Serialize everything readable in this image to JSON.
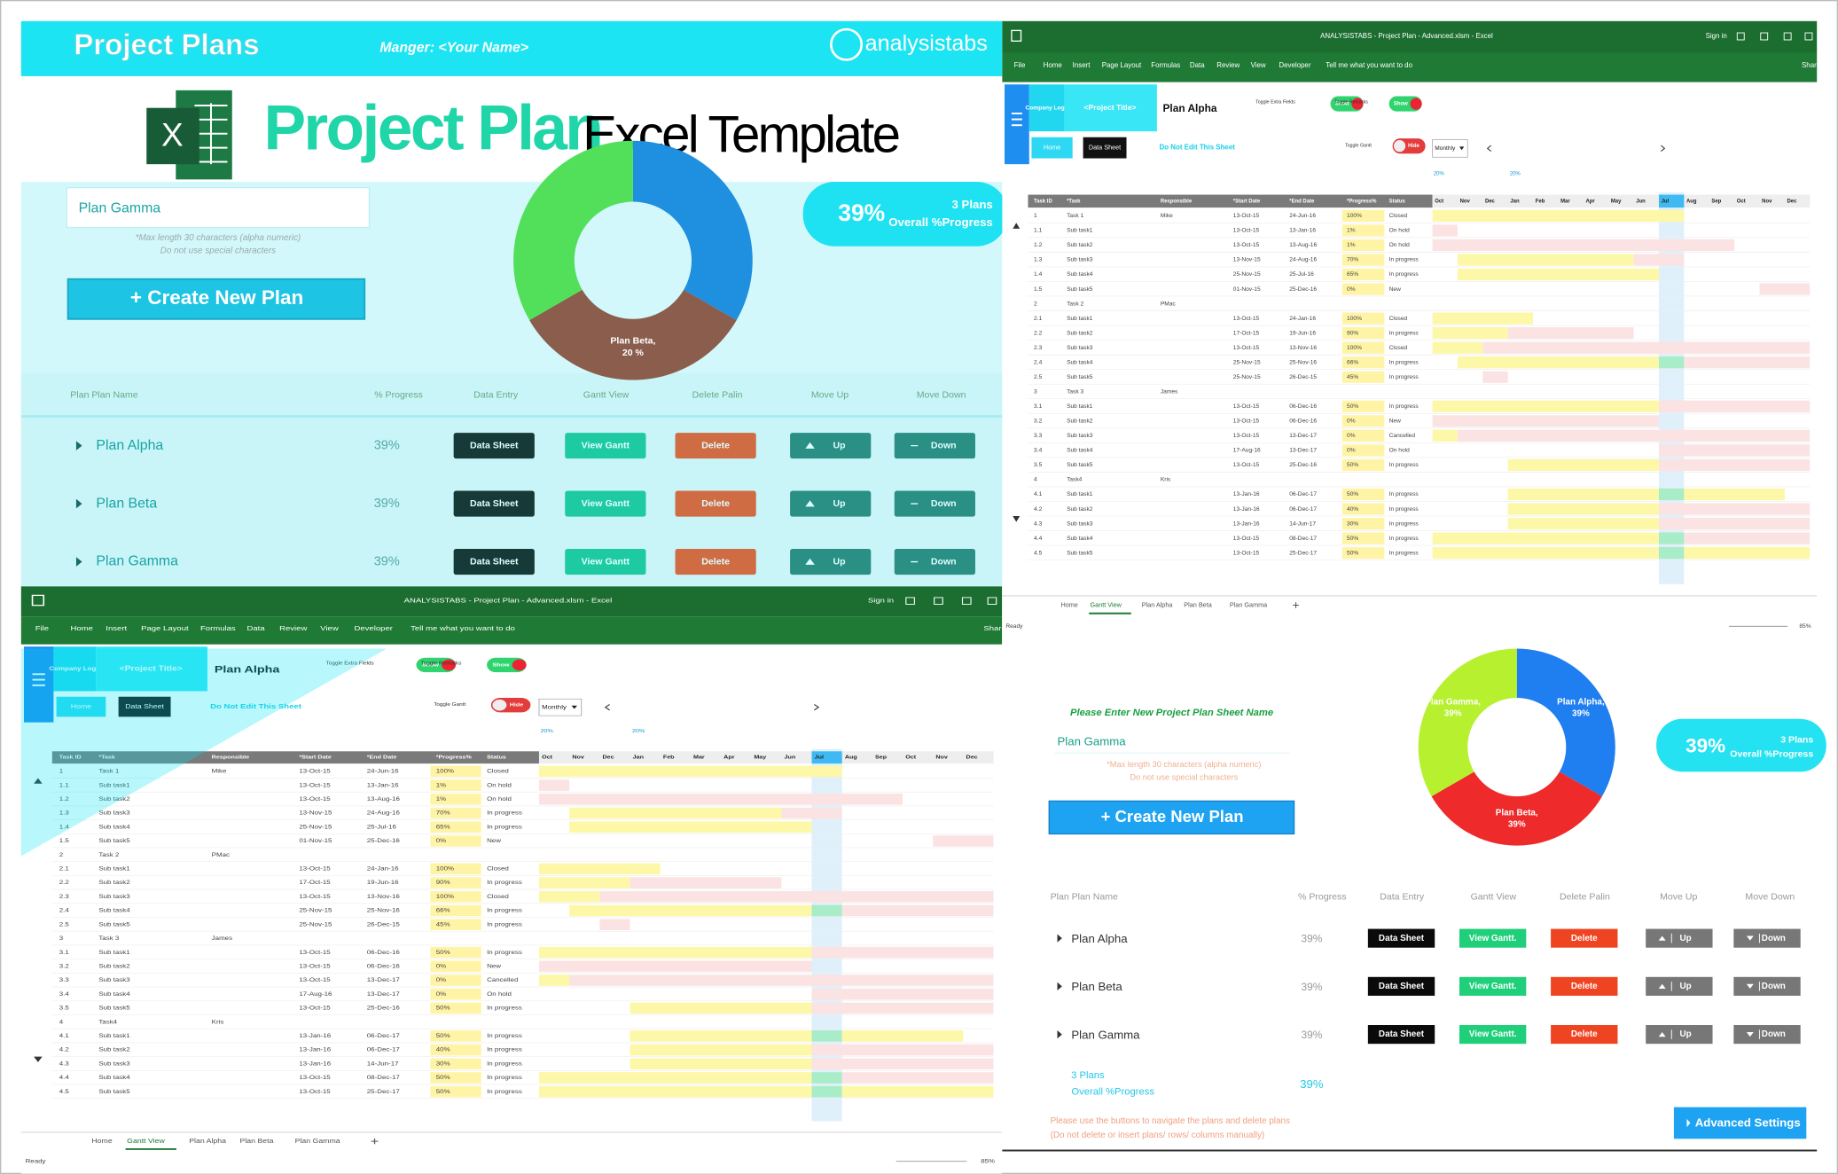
{
  "banner": {
    "title": "Project Plans",
    "manager": "Manger: <Your Name>",
    "brand": "analysistabs"
  },
  "hero": {
    "icon": "X",
    "title": "Project Plan",
    "subtitle": "Excel Template"
  },
  "dashboard_top": {
    "plan_name": "Plan Gamma",
    "hints": [
      "*Max length 30 characters (alpha numeric)",
      "Do not use special characters"
    ],
    "create_button": "+ Create New Plan",
    "progress": {
      "value": "39%",
      "plans": "3 Plans",
      "label": "Overall %Progress"
    },
    "headers": [
      "Plan Plan Name",
      "% Progress",
      "Data Entry",
      "Gantt View",
      "Delete Palin",
      "Move Up",
      "Move Down"
    ],
    "rows": [
      {
        "name": "Plan Alpha",
        "progress": "39%"
      },
      {
        "name": "Plan Beta",
        "progress": "39%"
      },
      {
        "name": "Plan Gamma",
        "progress": "39%"
      }
    ],
    "buttons": [
      "Data Sheet",
      "View Gantt",
      "Delete",
      "Up",
      "Down"
    ]
  },
  "dashboard_bottom": {
    "prompt": "Please Enter New Project Plan Sheet Name",
    "plan_name": "Plan Gamma",
    "hints": [
      "*Max length 30 characters (alpha numeric)",
      "Do not use special characters"
    ],
    "create_button": "+ Create New Plan",
    "progress": {
      "value": "39%",
      "plans": "3 Plans",
      "label": "Overall %Progress"
    },
    "headers": [
      "Plan Plan Name",
      "% Progress",
      "Data Entry",
      "Gantt View",
      "Delete Palin",
      "Move Up",
      "Move Down"
    ],
    "rows": [
      {
        "name": "Plan Alpha",
        "progress": "39%"
      },
      {
        "name": "Plan Beta",
        "progress": "39%"
      },
      {
        "name": "Plan Gamma",
        "progress": "39%"
      }
    ],
    "buttons": [
      "Data Sheet",
      "View Gantt.",
      "Delete",
      "Up",
      "Down"
    ],
    "summary": {
      "plans": "3 Plans",
      "label": "Overall %Progress",
      "value": "39%"
    },
    "notes": [
      "Please use the buttons to navigate the plans and delete plans",
      "(Do not delete or insert plans/ rows/ columns manually)"
    ],
    "advanced_button": "Advanced Settings"
  },
  "chart_data": [
    {
      "type": "pie",
      "categories": [
        null,
        "Plan Beta,",
        null
      ],
      "values": [
        20,
        20,
        20
      ],
      "value_labels": [
        "20 %",
        "20 %",
        "20%"
      ],
      "colors": [
        "#1f8fe0",
        "#8a5d4c",
        "#52e05a"
      ]
    },
    {
      "type": "pie",
      "categories": [
        "Plan Alpha,",
        "Plan Beta,",
        "Plan Gamma,"
      ],
      "values": [
        39,
        39,
        39
      ],
      "value_labels": [
        "39%",
        "39%",
        "39%"
      ],
      "colors": [
        "#1f7ef0",
        "#ee2a2a",
        "#b6f02e"
      ]
    }
  ],
  "sheet": {
    "title_bar": "ANALYSISTABS - Project Plan - Advanced.xlsm - Excel",
    "sign_in": "Sign in",
    "menu": [
      "File",
      "Home",
      "Insert",
      "Page Layout",
      "Formulas",
      "Data",
      "Review",
      "View",
      "Developer",
      "Tell me what you want to do"
    ],
    "share": "Share",
    "company_logo": "Company Logo",
    "project_title": "<Project Title>",
    "plan": "Plan Alpha",
    "toggles": [
      {
        "label": "Toggle Extra Fields",
        "state": "Show"
      },
      {
        "label": "Toggle Remarks",
        "state": "Show"
      },
      {
        "label": "Toggle Gantt",
        "state": "Hide"
      }
    ],
    "home_button": "Home",
    "data_sheet_button": "Data Sheet",
    "warning": "Do Not Edit This Sheet",
    "view": "Monthly",
    "percent_marks": [
      "20%",
      "20%"
    ],
    "columns": [
      "Task ID",
      "*Task",
      "Responsible",
      "*Start Date",
      "*End Date",
      "*Progress%",
      "Status"
    ],
    "months": [
      "Oct",
      "Nov",
      "Dec",
      "Jan",
      "Feb",
      "Mar",
      "Apr",
      "May",
      "Jun",
      "Jul",
      "Aug",
      "Sep",
      "Oct",
      "Nov",
      "Dec"
    ],
    "tasks": [
      {
        "id": "1",
        "task": "Task 1",
        "responsible": "Mike",
        "start": "13-Oct-15",
        "end": "24-Jun-16",
        "progress": "100%",
        "status": "Closed"
      },
      {
        "id": "1.1",
        "task": "Sub task1",
        "start": "13-Oct-15",
        "end": "13-Jan-16",
        "progress": "1%",
        "status": "On hold"
      },
      {
        "id": "1.2",
        "task": "Sub task2",
        "start": "13-Oct-15",
        "end": "13-Aug-16",
        "progress": "1%",
        "status": "On hold"
      },
      {
        "id": "1.3",
        "task": "Sub task3",
        "start": "13-Nov-15",
        "end": "24-Aug-16",
        "progress": "70%",
        "status": "In progress"
      },
      {
        "id": "1.4",
        "task": "Sub task4",
        "start": "25-Nov-15",
        "end": "25-Jul-16",
        "progress": "65%",
        "status": "In progress"
      },
      {
        "id": "1.5",
        "task": "Sub task5",
        "start": "01-Nov-15",
        "end": "25-Dec-16",
        "progress": "0%",
        "status": "New"
      },
      {
        "id": "2",
        "task": "Task 2",
        "responsible": "PMac"
      },
      {
        "id": "2.1",
        "task": "Sub task1",
        "start": "13-Oct-15",
        "end": "24-Jan-16",
        "progress": "100%",
        "status": "Closed"
      },
      {
        "id": "2.2",
        "task": "Sub task2",
        "start": "17-Oct-15",
        "end": "19-Jun-16",
        "progress": "90%",
        "status": "In progress"
      },
      {
        "id": "2.3",
        "task": "Sub task3",
        "start": "13-Oct-15",
        "end": "13-Nov-16",
        "progress": "100%",
        "status": "Closed"
      },
      {
        "id": "2.4",
        "task": "Sub task4",
        "start": "25-Nov-15",
        "end": "25-Nov-16",
        "progress": "66%",
        "status": "In progress"
      },
      {
        "id": "2.5",
        "task": "Sub task5",
        "start": "25-Nov-15",
        "end": "26-Dec-15",
        "progress": "45%",
        "status": "In progress"
      },
      {
        "id": "3",
        "task": "Task 3",
        "responsible": "James"
      },
      {
        "id": "3.1",
        "task": "Sub task1",
        "start": "13-Oct-15",
        "end": "06-Dec-16",
        "progress": "50%",
        "status": "In progress"
      },
      {
        "id": "3.2",
        "task": "Sub task2",
        "start": "13-Oct-15",
        "end": "06-Dec-16",
        "progress": "0%",
        "status": "New"
      },
      {
        "id": "3.3",
        "task": "Sub task3",
        "start": "13-Oct-15",
        "end": "13-Dec-17",
        "progress": "0%",
        "status": "Cancelled"
      },
      {
        "id": "3.4",
        "task": "Sub task4",
        "start": "17-Aug-16",
        "end": "13-Dec-17",
        "progress": "0%",
        "status": "On hold"
      },
      {
        "id": "3.5",
        "task": "Sub task5",
        "start": "13-Oct-15",
        "end": "25-Dec-16",
        "progress": "50%",
        "status": "In progress"
      },
      {
        "id": "4",
        "task": "Task4",
        "responsible": "Kris"
      },
      {
        "id": "4.1",
        "task": "Sub task1",
        "start": "13-Jan-16",
        "end": "06-Dec-17",
        "progress": "50%",
        "status": "In progress"
      },
      {
        "id": "4.2",
        "task": "Sub task2",
        "start": "13-Jan-16",
        "end": "06-Dec-17",
        "progress": "40%",
        "status": "In progress"
      },
      {
        "id": "4.3",
        "task": "Sub task3",
        "start": "13-Jan-16",
        "end": "14-Jun-17",
        "progress": "30%",
        "status": "In progress"
      },
      {
        "id": "4.4",
        "task": "Sub task4",
        "start": "13-Oct-15",
        "end": "08-Dec-17",
        "progress": "50%",
        "status": "In progress"
      },
      {
        "id": "4.5",
        "task": "Sub task5",
        "start": "13-Oct-15",
        "end": "25-Dec-17",
        "progress": "50%",
        "status": "In progress"
      }
    ],
    "tabs": [
      "Home",
      "Gantt View",
      "Plan Alpha",
      "Plan Beta",
      "Plan Gamma"
    ],
    "status": "Ready",
    "zoom": "85%"
  }
}
